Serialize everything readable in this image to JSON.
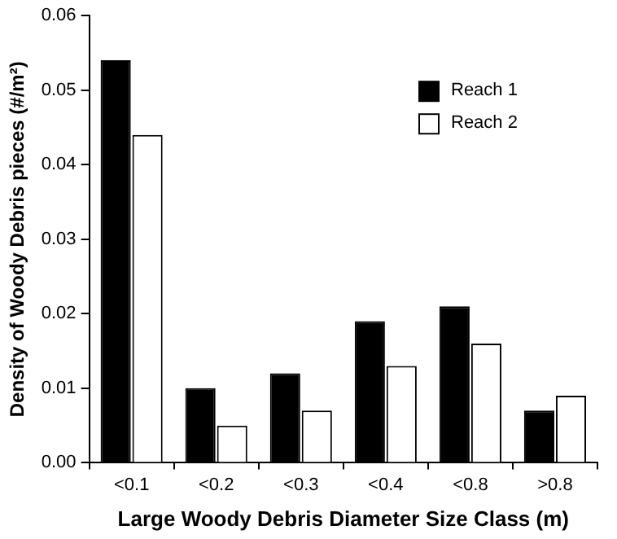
{
  "chart_data": {
    "type": "bar",
    "xlabel": "Large Woody Debris Diameter Size Class (m)",
    "ylabel": "Density of Woody Debris pieces (#/m²)",
    "categories": [
      "<0.1",
      "<0.2",
      "<0.3",
      "<0.4",
      "<0.8",
      ">0.8"
    ],
    "series": [
      {
        "name": "Reach 1",
        "color": "#000000",
        "values": [
          0.054,
          0.01,
          0.012,
          0.019,
          0.021,
          0.007
        ]
      },
      {
        "name": "Reach 2",
        "color": "#ffffff",
        "values": [
          0.044,
          0.005,
          0.007,
          0.013,
          0.016,
          0.009
        ]
      }
    ],
    "ylim": [
      0,
      0.06
    ],
    "yticks": [
      {
        "value": 0,
        "label": "0.00"
      },
      {
        "value": 0.01,
        "label": "0.01"
      },
      {
        "value": 0.02,
        "label": "0.02"
      },
      {
        "value": 0.03,
        "label": "0.03"
      },
      {
        "value": 0.04,
        "label": "0.04"
      },
      {
        "value": 0.05,
        "label": "0.05"
      },
      {
        "value": 0.06,
        "label": "0.06"
      }
    ],
    "grid": false,
    "legend": "top right"
  }
}
